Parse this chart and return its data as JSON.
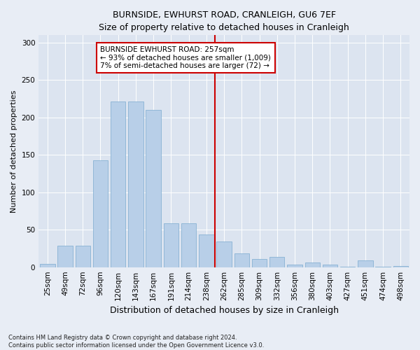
{
  "title": "BURNSIDE, EWHURST ROAD, CRANLEIGH, GU6 7EF",
  "subtitle": "Size of property relative to detached houses in Cranleigh",
  "xlabel": "Distribution of detached houses by size in Cranleigh",
  "ylabel": "Number of detached properties",
  "categories": [
    "25sqm",
    "49sqm",
    "72sqm",
    "96sqm",
    "120sqm",
    "143sqm",
    "167sqm",
    "191sqm",
    "214sqm",
    "238sqm",
    "262sqm",
    "285sqm",
    "309sqm",
    "332sqm",
    "356sqm",
    "380sqm",
    "403sqm",
    "427sqm",
    "451sqm",
    "474sqm",
    "498sqm"
  ],
  "values": [
    4,
    29,
    29,
    143,
    221,
    221,
    210,
    59,
    59,
    44,
    34,
    18,
    11,
    14,
    3,
    6,
    3,
    1,
    9,
    1,
    2
  ],
  "bar_color": "#b8cfe8",
  "bar_edge_color": "#7aaacf",
  "vline_color": "#cc0000",
  "box_color": "#cc0000",
  "vline_x_index": 10,
  "vline_label": "BURNSIDE EWHURST ROAD: 257sqm",
  "annotation_line1": "← 93% of detached houses are smaller (1,009)",
  "annotation_line2": "7% of semi-detached houses are larger (72) →",
  "ylim": [
    0,
    310
  ],
  "yticks": [
    0,
    50,
    100,
    150,
    200,
    250,
    300
  ],
  "footnote1": "Contains HM Land Registry data © Crown copyright and database right 2024.",
  "footnote2": "Contains public sector information licensed under the Open Government Licence v3.0.",
  "bg_color": "#e8edf5",
  "plot_bg_color": "#dce4f0",
  "title_fontsize": 9,
  "subtitle_fontsize": 8.5,
  "ylabel_fontsize": 8,
  "xlabel_fontsize": 9,
  "tick_fontsize": 7.5,
  "annot_fontsize": 7.5
}
